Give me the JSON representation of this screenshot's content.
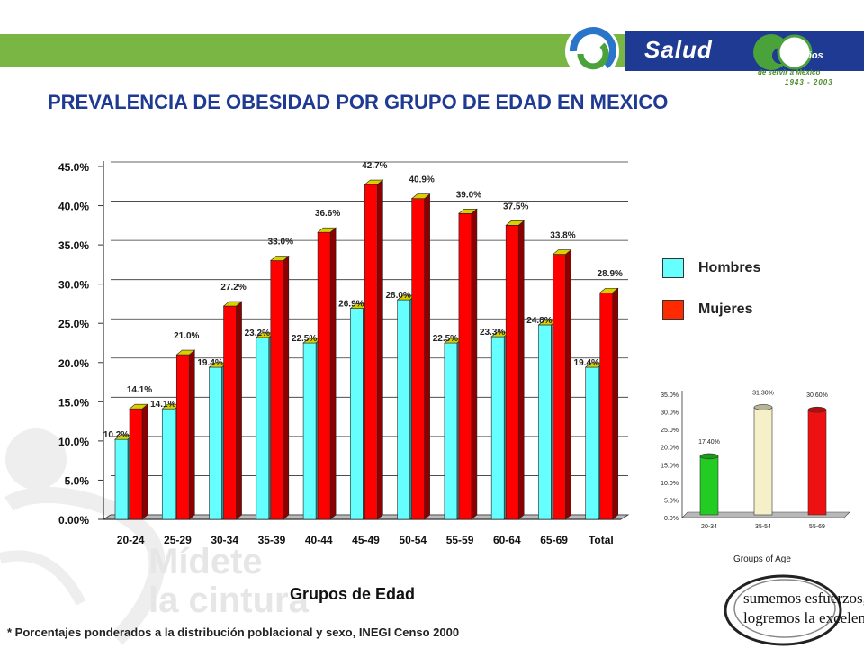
{
  "header": {
    "brand": "Salud",
    "years_suffix": "años",
    "tagline": "de servir a México",
    "years": "1943 - 2003",
    "colors": {
      "band": "#79b643",
      "title": "#1f3a93"
    }
  },
  "title": "PREVALENCIA DE OBESIDAD POR GRUPO DE EDAD EN MEXICO",
  "watermark": {
    "line1": "Mídete",
    "line2": "la cintura"
  },
  "legend": {
    "items": [
      {
        "label": "Hombres",
        "color": "#66ffff"
      },
      {
        "label": "Mujeres",
        "color": "#ff2a00"
      }
    ]
  },
  "footnote": "* Porcentajes ponderados a la distribución poblacional y sexo, INEGI Censo 2000",
  "slogan": {
    "line1": "sumemos esfuerzos,",
    "line2": "logremos la excelencia..."
  },
  "chart_data": [
    {
      "type": "bar",
      "title": "PREVALENCIA DE OBESIDAD POR GRUPO DE EDAD EN MEXICO",
      "xlabel": "Grupos de Edad",
      "ylabel": "",
      "ylim": [
        0,
        45
      ],
      "yticks": [
        "0.00%",
        "5.0%",
        "10.0%",
        "15.0%",
        "20.0%",
        "25.0%",
        "30.0%",
        "35.0%",
        "40.0%",
        "45.0%"
      ],
      "grid": true,
      "legend_position": "right",
      "categories": [
        "20-24",
        "25-29",
        "30-34",
        "35-39",
        "40-44",
        "45-49",
        "50-54",
        "55-59",
        "60-64",
        "65-69",
        "Total"
      ],
      "series": [
        {
          "name": "Hombres",
          "color": "#66ffff",
          "values": [
            10.2,
            14.1,
            19.4,
            23.2,
            22.5,
            26.9,
            28.0,
            22.5,
            23.3,
            24.8,
            19.4
          ],
          "labels": [
            "10.2%",
            "14.1%",
            "19.4%",
            "23.2%",
            "22.5%",
            "26.9%",
            "28.0%",
            "22.5%",
            "23.3%",
            "24.8%",
            "19.4%"
          ]
        },
        {
          "name": "Mujeres",
          "color": "#ff0000",
          "values": [
            14.1,
            21.0,
            27.2,
            33.0,
            36.6,
            42.7,
            40.9,
            39.0,
            37.5,
            33.8,
            28.9
          ],
          "labels": [
            "14.1%",
            "21.0%",
            "27.2%",
            "33.0%",
            "36.6%",
            "42.7%",
            "40.9%",
            "39.0%",
            "37.5%",
            "33.8%",
            "28.9%"
          ]
        }
      ]
    },
    {
      "type": "bar",
      "title": "",
      "xlabel": "Groups of Age",
      "ylabel": "",
      "ylim": [
        0,
        35
      ],
      "yticks": [
        "0.0%",
        "5.0%",
        "10.0%",
        "15.0%",
        "20.0%",
        "25.0%",
        "30.0%",
        "35.0%"
      ],
      "grid": false,
      "categories": [
        "20-34",
        "35-54",
        "55-69"
      ],
      "values": [
        17.4,
        31.3,
        30.6
      ],
      "labels": [
        "17.40%",
        "31.30%",
        "30.60%"
      ],
      "colors": [
        "#22cc22",
        "#f5f0c8",
        "#ee1111"
      ]
    }
  ]
}
